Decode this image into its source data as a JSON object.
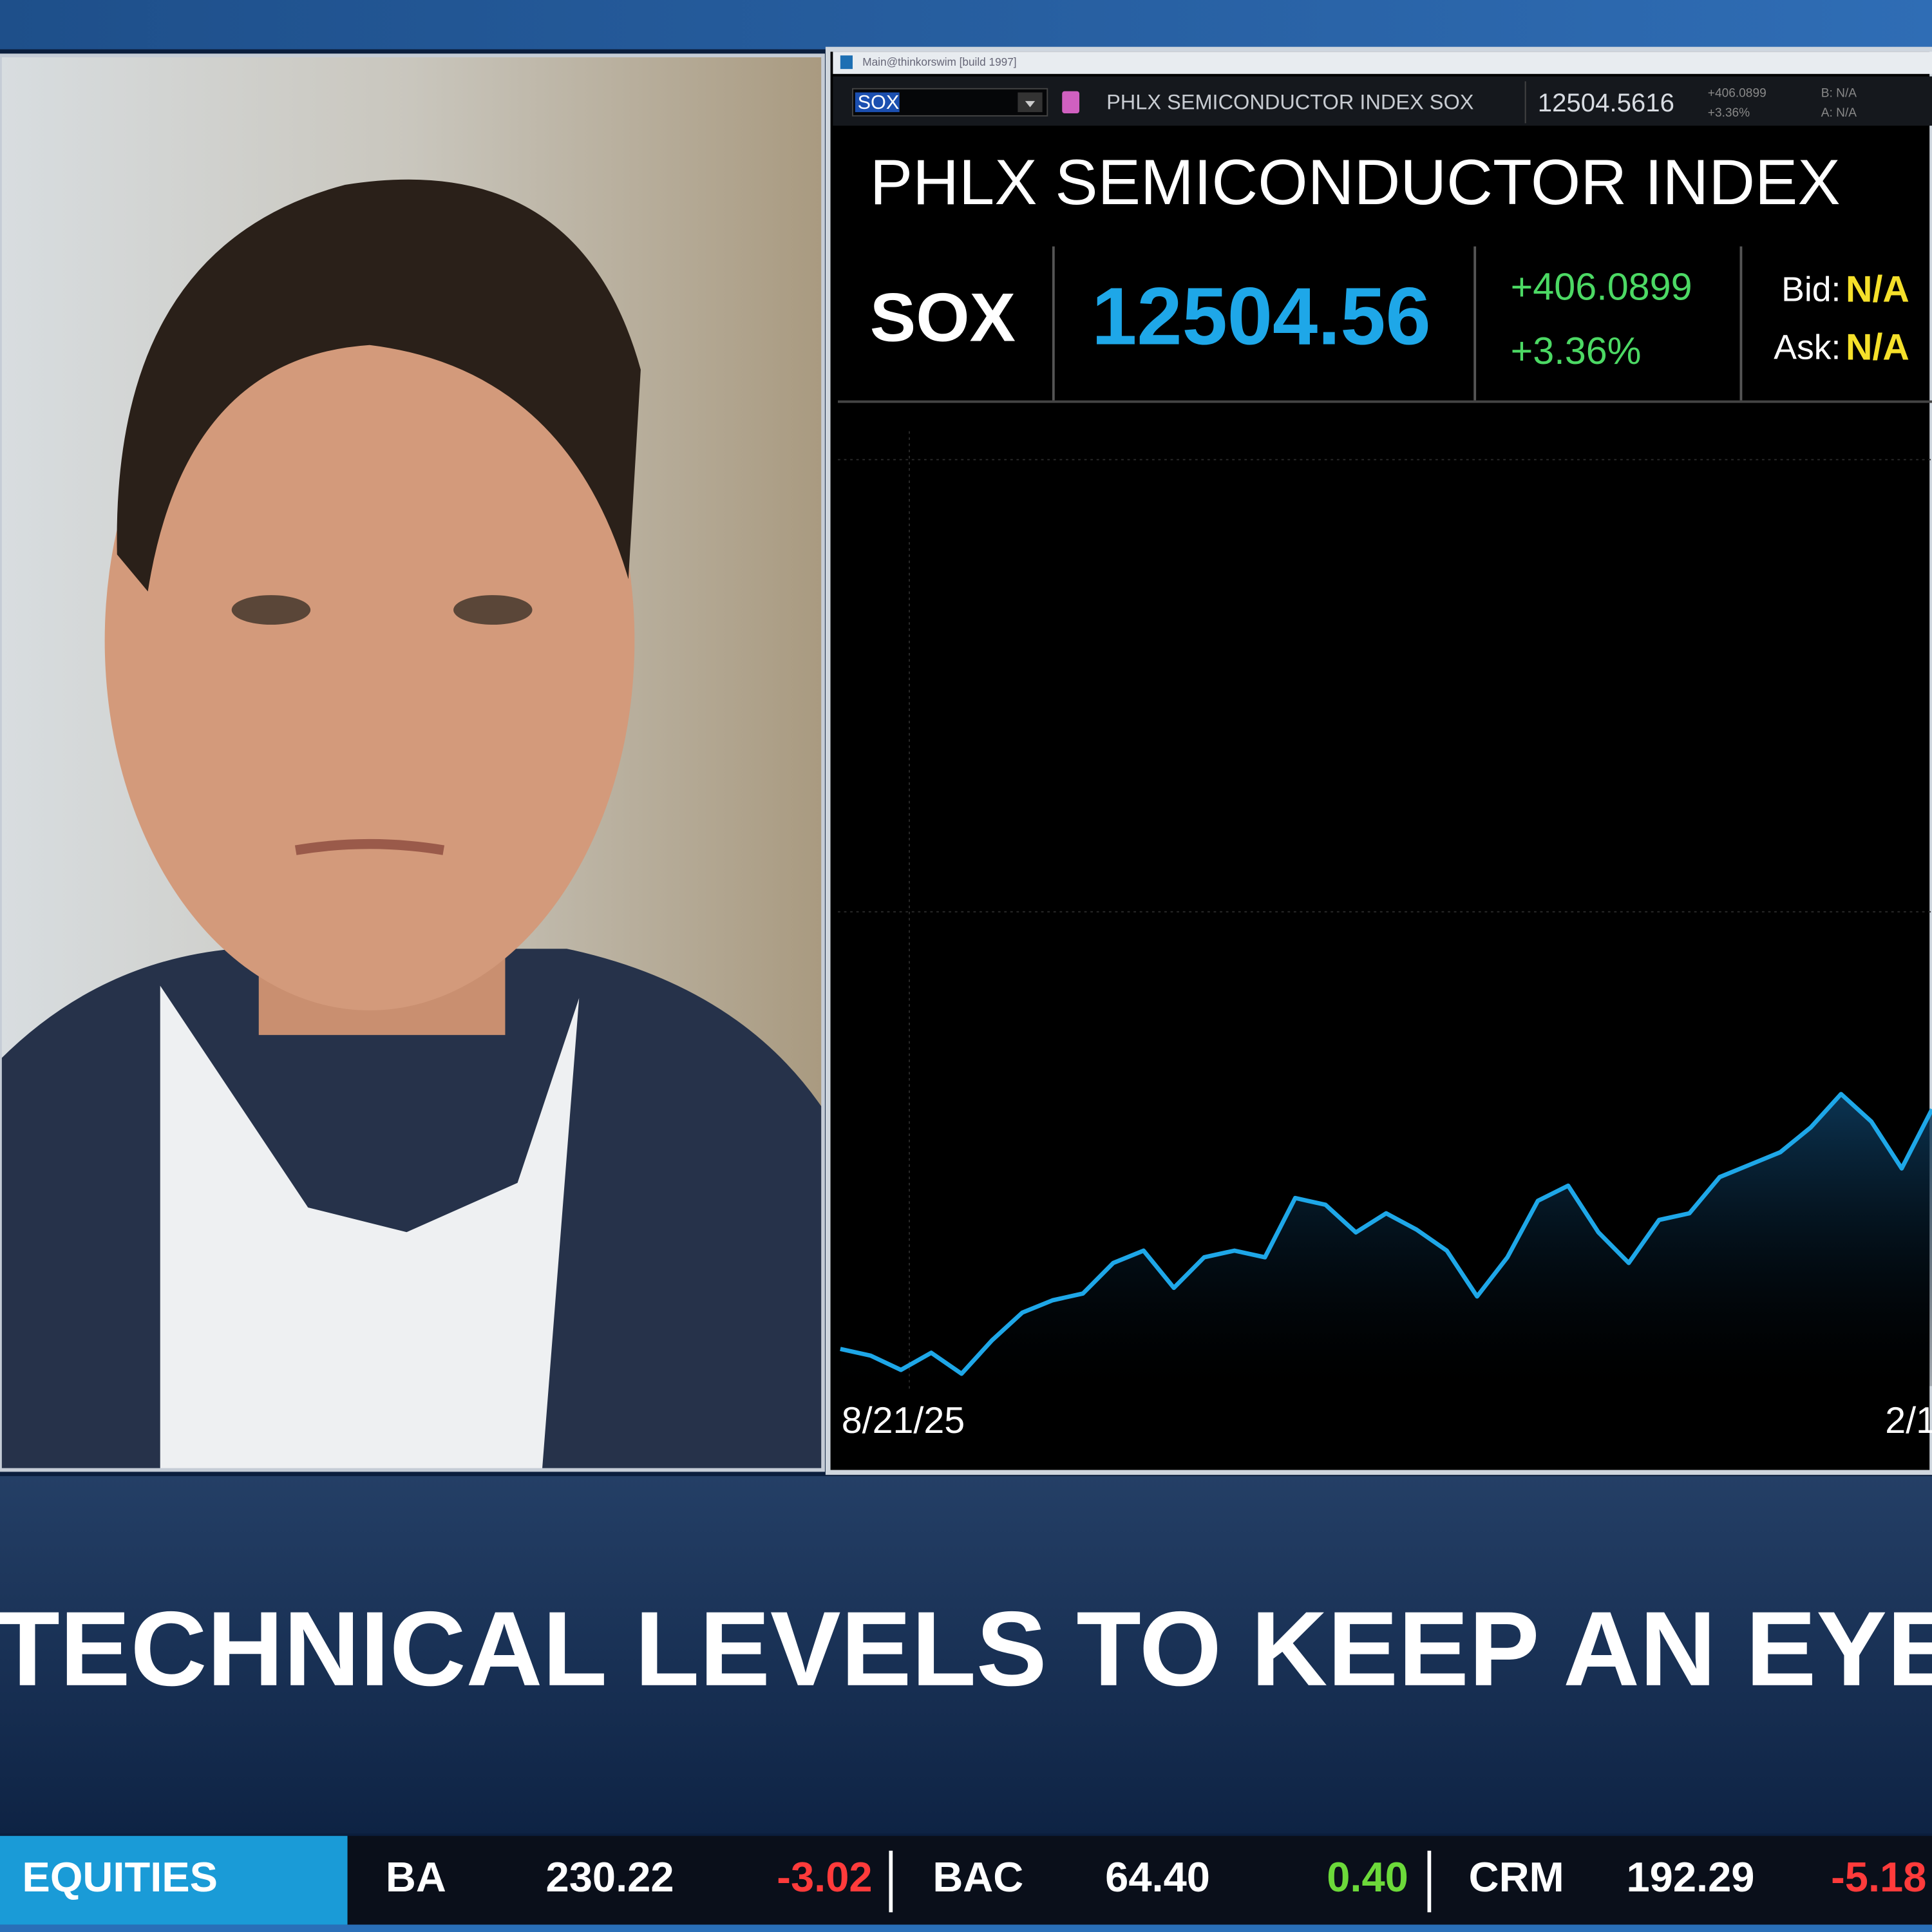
{
  "window": {
    "title": "Main@thinkorswim [build 1997]"
  },
  "quote_bar": {
    "symbol": "SOX",
    "description": "PHLX SEMICONDUCTOR INDEX SOX",
    "last": "12504.5616",
    "change": "+406.0899",
    "percent": "+3.36%",
    "bid": "B: N/A",
    "ask": "A: N/A"
  },
  "header": {
    "title": "PHLX SEMICONDUCTOR INDEX",
    "symbol": "SOX",
    "last": "12504.56",
    "change": "+406.0899",
    "percent": "+3.36%",
    "bid_label": "Bid:",
    "bid": "N/A",
    "ask_label": "Ask:",
    "ask": "N/A"
  },
  "chart_data": {
    "type": "area",
    "x_labels": [
      "8/21/25",
      "2/1"
    ],
    "color": "#1ea7e8",
    "ylim": [
      0,
      100
    ],
    "values": [
      3.9,
      3.2,
      1.7,
      3.5,
      1.3,
      4.8,
      7.7,
      9.0,
      9.7,
      12.9,
      14.2,
      10.3,
      13.5,
      14.2,
      13.5,
      19.7,
      19.0,
      16.1,
      18.1,
      16.4,
      14.2,
      9.4,
      13.5,
      19.4,
      21.0,
      16.1,
      12.9,
      17.4,
      18.1,
      21.9,
      23.2,
      24.5,
      27.1,
      30.6,
      27.7,
      22.8,
      29.0
    ]
  },
  "lower_third": {
    "headline": "TECHNICAL LEVELS TO KEEP AN EYE O"
  },
  "ticker": {
    "section": "EQUITIES",
    "items": [
      {
        "symbol": "BA",
        "price": "230.22",
        "change": "-3.02"
      },
      {
        "symbol": "BAC",
        "price": "64.40",
        "change": "0.40"
      },
      {
        "symbol": "CRM",
        "price": "192.29",
        "change": "-5.18"
      }
    ]
  }
}
